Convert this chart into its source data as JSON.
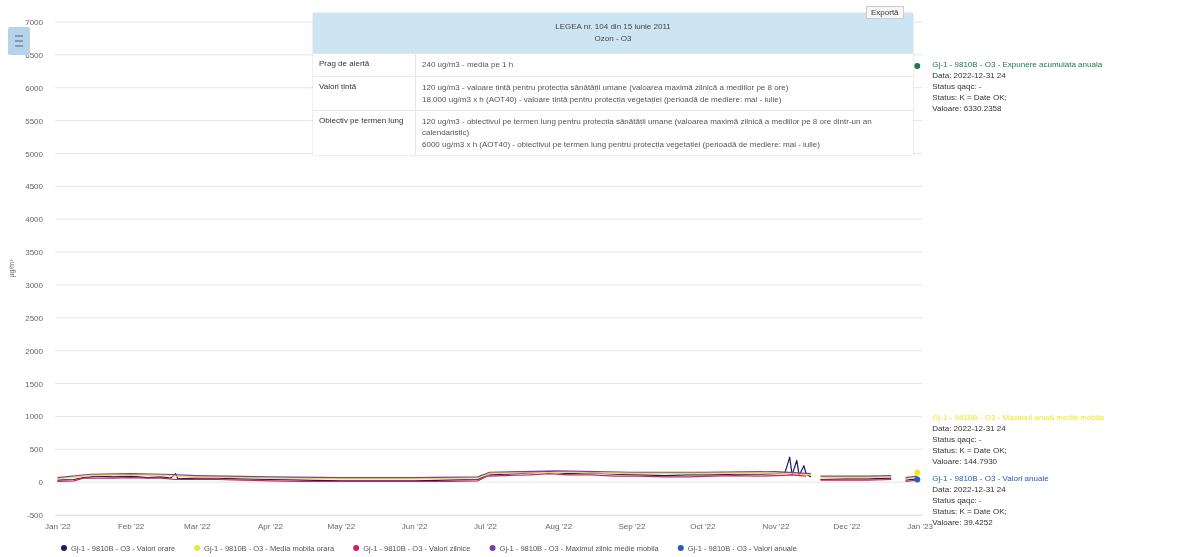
{
  "chart_data": {
    "type": "line",
    "ylabel": "µg/m³",
    "xlim": [
      "2021-12-31",
      "2023-01-02"
    ],
    "xticks": [
      {
        "value": "2022-01-01",
        "label": "Jan '22"
      },
      {
        "value": "2022-02-01",
        "label": "Feb '22"
      },
      {
        "value": "2022-03-01",
        "label": "Mar '22"
      },
      {
        "value": "2022-04-01",
        "label": "Apr '22"
      },
      {
        "value": "2022-05-01",
        "label": "May '22"
      },
      {
        "value": "2022-06-01",
        "label": "Jun '22"
      },
      {
        "value": "2022-07-01",
        "label": "Jul '22"
      },
      {
        "value": "2022-08-01",
        "label": "Aug '22"
      },
      {
        "value": "2022-09-01",
        "label": "Sep '22"
      },
      {
        "value": "2022-10-01",
        "label": "Oct '22"
      },
      {
        "value": "2022-11-01",
        "label": "Nov '22"
      },
      {
        "value": "2022-12-01",
        "label": "Dec '22"
      },
      {
        "value": "2023-01-01",
        "label": "Jan '23"
      }
    ],
    "ylim": [
      -500,
      7000
    ],
    "yticks": [
      -500,
      0,
      500,
      1000,
      1500,
      2000,
      2500,
      3000,
      3500,
      4000,
      4500,
      5000,
      5500,
      6000,
      6500,
      7000
    ],
    "grid": "y",
    "legend": "bottom",
    "series": [
      {
        "name": "Gj-1 - 9810B - O3 - Valori orare",
        "color": "#1a1a6e",
        "x": [
          "2022-01-01",
          "2022-01-08",
          "2022-01-12",
          "2022-01-18",
          "2022-01-25",
          "2022-02-01",
          "2022-02-08",
          "2022-02-14",
          "2022-02-18",
          "2022-02-20",
          "2022-02-21",
          "2022-03-01",
          "2022-03-10",
          "2022-03-20",
          "2022-04-01",
          "2022-04-15",
          "2022-05-01",
          "2022-05-15",
          "2022-06-01",
          "2022-06-15",
          "2022-06-28",
          "2022-07-02",
          "2022-07-10",
          "2022-07-20",
          "2022-07-28",
          "2022-08-05",
          "2022-08-15",
          "2022-08-25",
          "2022-09-05",
          "2022-09-15",
          "2022-09-25",
          "2022-10-05",
          "2022-10-15",
          "2022-10-25",
          "2022-11-01",
          "2022-11-05",
          "2022-11-07",
          "2022-11-08",
          "2022-11-10",
          "2022-11-11",
          "2022-11-13",
          "2022-11-14",
          "2022-11-16",
          "2022-11-18",
          "2022-11-20",
          "2022-12-01",
          "2022-12-10",
          "2022-12-20",
          "2022-12-23",
          "2022-12-26",
          "2022-12-31"
        ],
        "values": [
          30,
          40,
          70,
          90,
          80,
          90,
          70,
          80,
          60,
          130,
          50,
          60,
          60,
          50,
          40,
          30,
          20,
          20,
          20,
          30,
          40,
          110,
          120,
          140,
          160,
          130,
          140,
          120,
          110,
          100,
          110,
          110,
          120,
          120,
          130,
          140,
          380,
          110,
          330,
          100,
          250,
          120,
          80,
          null,
          40,
          50,
          50,
          60,
          null,
          30,
          50
        ]
      },
      {
        "name": "Gj-1 - 9810B - O3 - Media mobila orara",
        "color": "#e8e83a",
        "x": [
          "2022-01-01",
          "2022-01-15",
          "2022-02-01",
          "2022-02-15",
          "2022-03-01",
          "2022-04-01",
          "2022-05-01",
          "2022-06-01",
          "2022-06-28",
          "2022-07-03",
          "2022-08-01",
          "2022-09-01",
          "2022-10-01",
          "2022-11-01",
          "2022-11-16",
          "2022-11-18",
          "2022-11-20",
          "2022-12-10",
          "2022-12-20",
          "2022-12-23",
          "2022-12-26",
          "2022-12-31"
        ],
        "values": [
          50,
          100,
          110,
          100,
          80,
          60,
          50,
          50,
          60,
          130,
          150,
          130,
          130,
          140,
          110,
          null,
          70,
          70,
          80,
          null,
          50,
          70
        ]
      },
      {
        "name": "Gj-1 - 9810B - O3 - Valori zilnice",
        "color": "#d81b60",
        "x": [
          "2022-01-01",
          "2022-01-08",
          "2022-01-12",
          "2022-01-18",
          "2022-01-25",
          "2022-02-01",
          "2022-02-08",
          "2022-02-14",
          "2022-02-20",
          "2022-03-01",
          "2022-03-10",
          "2022-03-20",
          "2022-04-01",
          "2022-04-15",
          "2022-05-01",
          "2022-05-15",
          "2022-06-01",
          "2022-06-15",
          "2022-06-28",
          "2022-07-02",
          "2022-07-10",
          "2022-07-20",
          "2022-07-28",
          "2022-08-05",
          "2022-08-15",
          "2022-08-25",
          "2022-09-05",
          "2022-09-15",
          "2022-09-25",
          "2022-10-05",
          "2022-10-15",
          "2022-10-25",
          "2022-11-01",
          "2022-11-08",
          "2022-11-14",
          "2022-11-18",
          "2022-11-20",
          "2022-12-01",
          "2022-12-10",
          "2022-12-20",
          "2022-12-23",
          "2022-12-26",
          "2022-12-31"
        ],
        "values": [
          10,
          20,
          60,
          60,
          60,
          70,
          60,
          60,
          40,
          40,
          40,
          30,
          20,
          10,
          10,
          10,
          10,
          10,
          20,
          90,
          100,
          110,
          130,
          110,
          110,
          90,
          90,
          80,
          80,
          90,
          100,
          90,
          100,
          110,
          90,
          null,
          30,
          30,
          30,
          40,
          null,
          10,
          30
        ]
      },
      {
        "name": "Gj-1 - 9810B - O3 - Maximul zilnic medie mobila",
        "color": "#7b3fa0",
        "x": [
          "2022-01-01",
          "2022-01-15",
          "2022-02-01",
          "2022-02-15",
          "2022-03-01",
          "2022-04-01",
          "2022-05-01",
          "2022-06-01",
          "2022-06-28",
          "2022-07-03",
          "2022-08-01",
          "2022-09-01",
          "2022-10-01",
          "2022-11-01",
          "2022-11-16",
          "2022-11-18",
          "2022-11-20",
          "2022-12-10",
          "2022-12-20",
          "2022-12-23",
          "2022-12-26",
          "2022-12-31"
        ],
        "values": [
          70,
          120,
          130,
          120,
          100,
          80,
          70,
          70,
          80,
          150,
          170,
          150,
          150,
          160,
          130,
          null,
          90,
          90,
          100,
          null,
          70,
          90
        ]
      },
      {
        "name": "Gj-1 - 9810B - O3 - Valori anuale",
        "type": "scatter",
        "color": "#2a5db0",
        "x": [
          "2022-12-31"
        ],
        "values": [
          39.4252
        ]
      },
      {
        "type": "scatter",
        "color": "#f2e81c",
        "x": [
          "2022-12-31"
        ],
        "values": [
          144.793
        ]
      },
      {
        "type": "scatter",
        "color": "#1a7a4a",
        "x": [
          "2022-12-31"
        ],
        "values": [
          6330.2358
        ]
      }
    ],
    "annotations": [
      "LEGEA nr. 104 din 15 iunie 2011",
      "Ozon - O3",
      "Prag de alertă",
      "240 ug/m3 - media pe 1 h",
      "Valori țintă",
      "120 ug/m3 - valoare țintă pentru protecția sănătății umane (valoarea maximă zilnică a mediilor pe 8 ore)",
      "18.000 ug/m3 x h (AOT40) - valoare țintă pentru protecția vegetației (perioadă de mediere: mai - iulie)",
      "Obiectiv pe termen lung",
      "120 ug/m3 - obiectivul pe termen lung pentru protecția sănătății umane (valoarea maximă zilnică a mediilor pe 8 ore dintr-un an calendaristic)",
      "6000 ug/m3 x h (AOT40) - obiectivul pe termen lung pentru protecția vegetației (perioadă de mediere: mai - iulie)",
      "Exportă",
      {
        "text": "Gj-1 - 9810B - O3 - Expunere acumulata anuala\nData: 2022-12-31 24\nStatus qaqc: -\nStatus: K = Date OK;\nValoare: 6330.2358",
        "x": "2022-12-31",
        "y": 6330.2358
      },
      {
        "text": "Gj-1 - 9810B - O3 - Maximul anual medie mobila\nData: 2022-12-31 24\nStatus qaqc: -\nStatus: K = Date OK;\nValoare: 144.7930",
        "x": "2022-12-31",
        "y": 144.793
      },
      {
        "text": "Gj-1 - 9810B - O3 - Valori anuale\nData: 2022-12-31 24\nStatus qaqc: -\nStatus: K = Date OK;\nValoare: 39.4252",
        "x": "2022-12-31",
        "y": 39.4252
      }
    ]
  }
}
